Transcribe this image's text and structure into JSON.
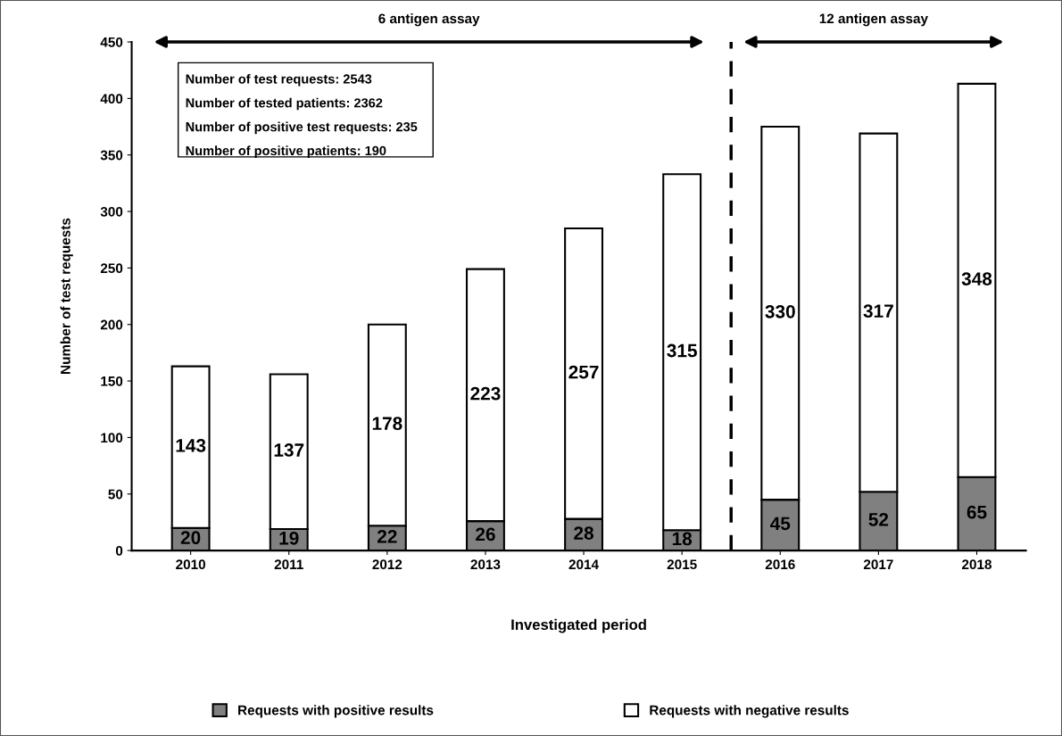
{
  "chart_data": {
    "type": "bar",
    "stacked": true,
    "xlabel": "Investigated period",
    "ylabel": "Number of test requests",
    "categories": [
      "2010",
      "2011",
      "2012",
      "2013",
      "2014",
      "2015",
      "2016",
      "2017",
      "2018"
    ],
    "series": [
      {
        "name": "Requests with positive results",
        "color": "#808080",
        "values": [
          20,
          19,
          22,
          26,
          28,
          18,
          45,
          52,
          65
        ]
      },
      {
        "name": "Requests with negative results",
        "color": "#ffffff",
        "values": [
          143,
          137,
          178,
          223,
          257,
          315,
          330,
          317,
          348
        ]
      }
    ],
    "data_labels": true,
    "ylim": [
      0,
      450
    ],
    "yticks": [
      0,
      50,
      100,
      150,
      200,
      250,
      300,
      350,
      400,
      450
    ],
    "grid": false,
    "legend": "bottom",
    "annotations": [
      "6 antigen assay",
      "12 antigen assay",
      "Number of test requests: 2543",
      "Number of tested patients: 2362",
      "Number of positive test requests: 235",
      "Number of positive patients: 190"
    ]
  }
}
